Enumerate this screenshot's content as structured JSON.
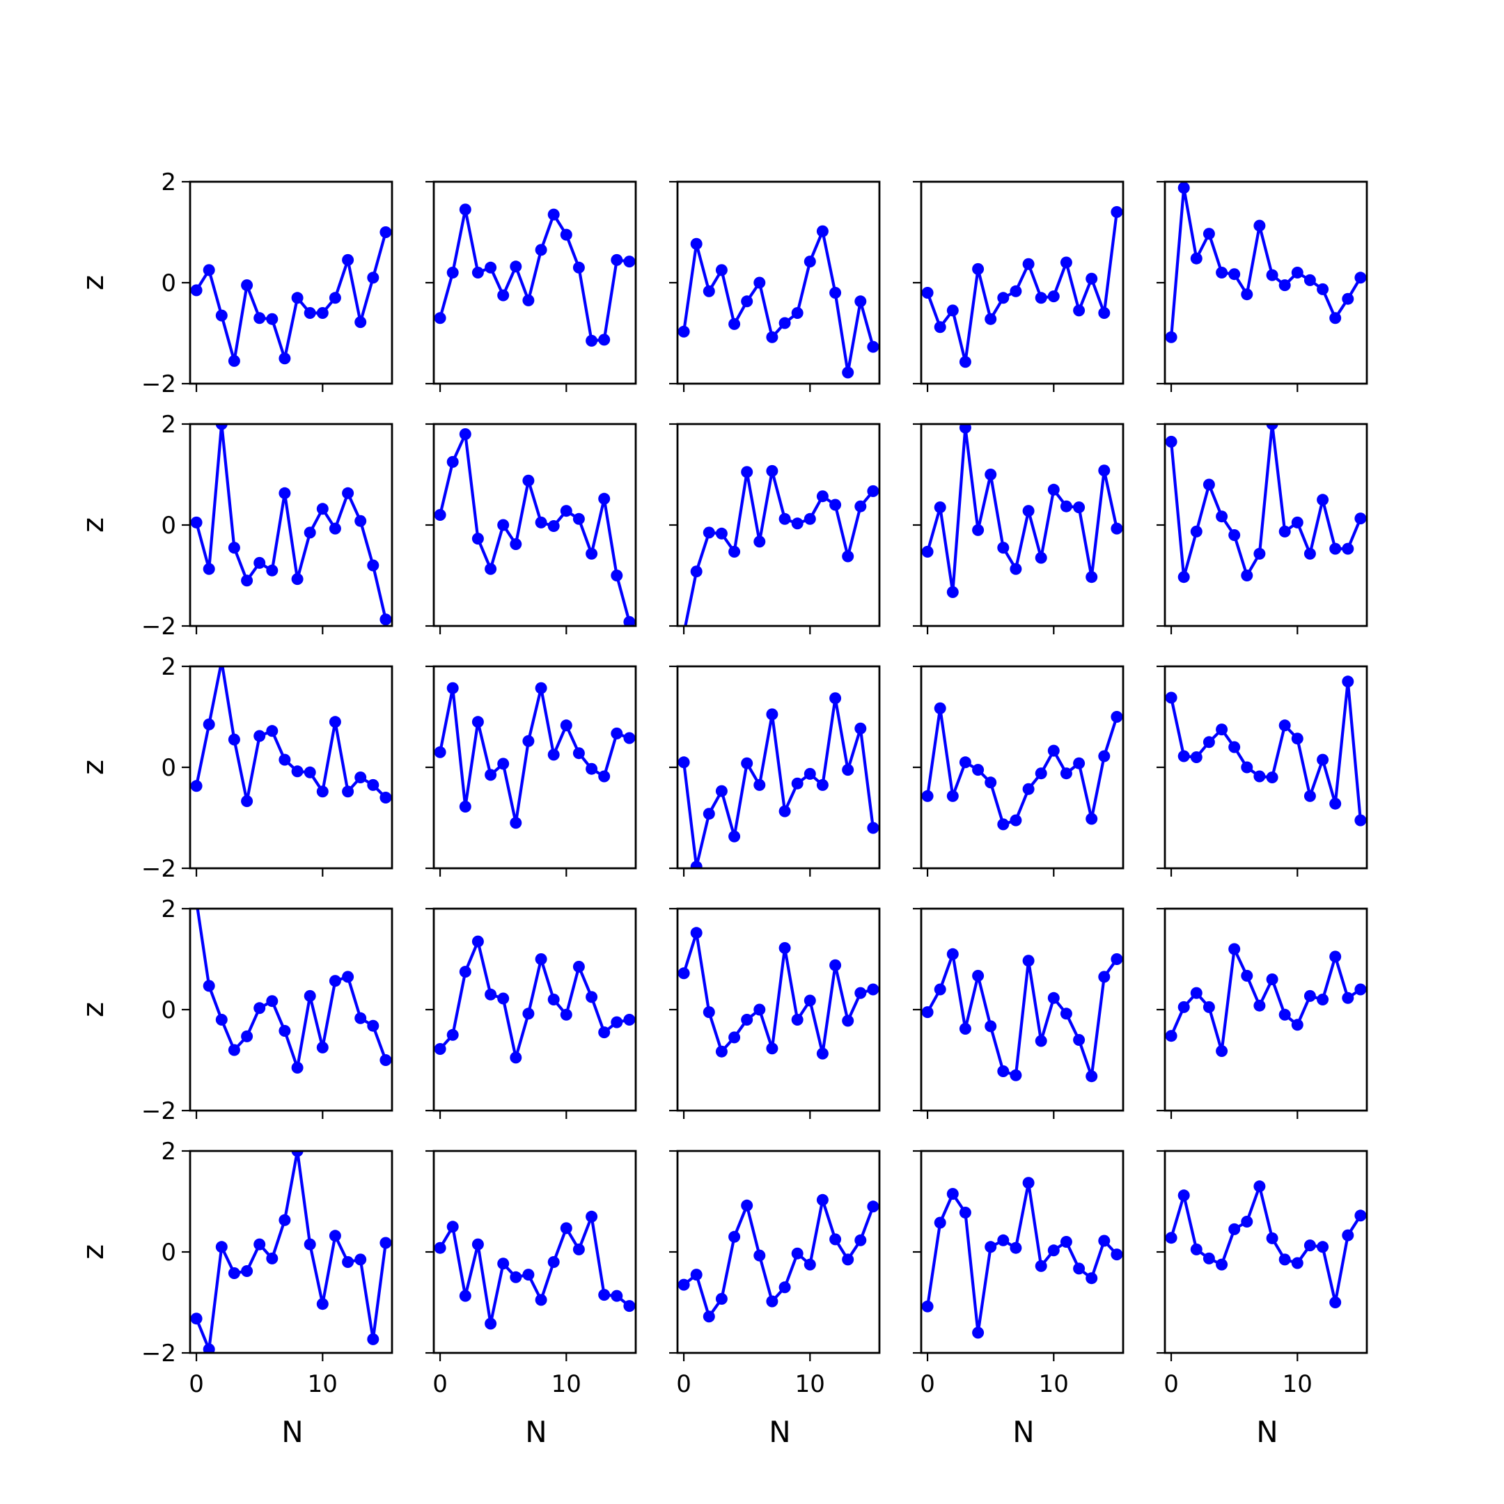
{
  "chart_data": {
    "type": "line",
    "layout": "5x5 grid of subplots, shared x and y axes",
    "xlabel": "N",
    "ylabel": "z",
    "x_ticks": [
      0,
      10
    ],
    "y_ticks": [
      -2,
      0,
      2
    ],
    "x_tick_labels": [
      "0",
      "10"
    ],
    "y_tick_labels": [
      "−2",
      "0",
      "2"
    ],
    "xlim": [
      -0.5,
      15.5
    ],
    "ylim": [
      -2,
      2
    ],
    "grid": false,
    "line_color": "#0000ff",
    "marker": "circle",
    "x": [
      0,
      1,
      2,
      3,
      4,
      5,
      6,
      7,
      8,
      9,
      10,
      11,
      12,
      13,
      14,
      15
    ],
    "panels": [
      [
        [
          -0.15,
          0.25,
          -0.65,
          -1.55,
          -0.05,
          -0.7,
          -0.72,
          -1.5,
          -0.3,
          -0.6,
          -0.6,
          -0.3,
          0.45,
          -0.78,
          0.1,
          1.0
        ],
        [
          -0.7,
          0.2,
          1.45,
          0.2,
          0.3,
          -0.25,
          0.32,
          -0.35,
          0.65,
          1.35,
          0.95,
          0.3,
          -1.15,
          -1.13,
          0.45,
          0.42
        ],
        [
          -0.97,
          0.77,
          -0.17,
          0.25,
          -0.82,
          -0.37,
          0.0,
          -1.08,
          -0.8,
          -0.6,
          0.42,
          1.02,
          -0.2,
          -1.78,
          -0.37,
          -1.27
        ],
        [
          -0.2,
          -0.88,
          -0.55,
          -1.57,
          0.27,
          -0.72,
          -0.3,
          -0.17,
          0.37,
          -0.3,
          -0.27,
          0.4,
          -0.55,
          0.08,
          -0.6,
          1.4
        ],
        [
          -1.08,
          1.88,
          0.48,
          0.97,
          0.2,
          0.17,
          -0.23,
          1.13,
          0.15,
          -0.05,
          0.2,
          0.05,
          -0.13,
          -0.7,
          -0.32,
          0.1
        ]
      ],
      [
        [
          0.05,
          -0.87,
          2.0,
          -0.45,
          -1.1,
          -0.75,
          -0.9,
          0.63,
          -1.07,
          -0.15,
          0.32,
          -0.07,
          0.63,
          0.08,
          -0.8,
          -1.87
        ],
        [
          0.2,
          1.25,
          1.8,
          -0.27,
          -0.87,
          0.0,
          -0.38,
          0.88,
          0.05,
          -0.02,
          0.28,
          0.12,
          -0.57,
          0.52,
          -1.0,
          -1.92
        ],
        [
          -2.15,
          -0.92,
          -0.15,
          -0.17,
          -0.53,
          1.05,
          -0.33,
          1.07,
          0.12,
          0.03,
          0.12,
          0.57,
          0.4,
          -0.62,
          0.37,
          0.67
        ],
        [
          -0.53,
          0.35,
          -1.33,
          1.93,
          -0.1,
          1.0,
          -0.45,
          -0.87,
          0.28,
          -0.65,
          0.7,
          0.37,
          0.35,
          -1.03,
          1.08,
          -0.07
        ],
        [
          1.65,
          -1.03,
          -0.13,
          0.8,
          0.17,
          -0.2,
          -1.0,
          -0.57,
          2.0,
          -0.13,
          0.05,
          -0.57,
          0.5,
          -0.47,
          -0.47,
          0.13
        ]
      ],
      [
        [
          -0.37,
          0.85,
          2.1,
          0.55,
          -0.67,
          0.62,
          0.72,
          0.15,
          -0.08,
          -0.1,
          -0.48,
          0.9,
          -0.48,
          -0.2,
          -0.35,
          -0.6
        ],
        [
          0.3,
          1.57,
          -0.78,
          0.9,
          -0.15,
          0.07,
          -1.1,
          0.52,
          1.57,
          0.25,
          0.83,
          0.28,
          -0.03,
          -0.18,
          0.67,
          0.58
        ],
        [
          0.1,
          -1.97,
          -0.92,
          -0.47,
          -1.37,
          0.08,
          -0.35,
          1.05,
          -0.87,
          -0.32,
          -0.13,
          -0.35,
          1.37,
          -0.05,
          0.77,
          -1.2
        ],
        [
          -0.57,
          1.17,
          -0.57,
          0.1,
          -0.05,
          -0.3,
          -1.13,
          -1.05,
          -0.43,
          -0.12,
          0.33,
          -0.12,
          0.08,
          -1.02,
          0.22,
          1.0
        ],
        [
          1.38,
          0.22,
          0.2,
          0.5,
          0.75,
          0.4,
          0.0,
          -0.18,
          -0.2,
          0.83,
          0.57,
          -0.57,
          0.15,
          -0.72,
          1.7,
          -1.05
        ]
      ],
      [
        [
          2.15,
          0.47,
          -0.2,
          -0.8,
          -0.53,
          0.03,
          0.17,
          -0.42,
          -1.15,
          0.27,
          -0.75,
          0.57,
          0.65,
          -0.17,
          -0.32,
          -1.0
        ],
        [
          -0.78,
          -0.5,
          0.75,
          1.35,
          0.3,
          0.22,
          -0.95,
          -0.08,
          1.0,
          0.2,
          -0.1,
          0.85,
          0.25,
          -0.45,
          -0.25,
          -0.2
        ],
        [
          0.72,
          1.52,
          -0.05,
          -0.83,
          -0.55,
          -0.2,
          0.0,
          -0.77,
          1.22,
          -0.2,
          0.18,
          -0.87,
          0.88,
          -0.22,
          0.33,
          0.4
        ],
        [
          -0.05,
          0.4,
          1.1,
          -0.38,
          0.67,
          -0.33,
          -1.22,
          -1.3,
          0.97,
          -0.62,
          0.23,
          -0.08,
          -0.6,
          -1.32,
          0.65,
          1.0
        ],
        [
          -0.52,
          0.05,
          0.33,
          0.05,
          -0.82,
          1.2,
          0.67,
          0.08,
          0.6,
          -0.1,
          -0.3,
          0.27,
          0.2,
          1.05,
          0.23,
          0.4
        ]
      ],
      [
        [
          -1.32,
          -1.93,
          0.1,
          -0.42,
          -0.38,
          0.15,
          -0.13,
          0.63,
          2.0,
          0.15,
          -1.03,
          0.32,
          -0.2,
          -0.15,
          -1.73,
          0.18
        ],
        [
          0.08,
          0.5,
          -0.87,
          0.15,
          -1.42,
          -0.23,
          -0.5,
          -0.45,
          -0.95,
          -0.2,
          0.47,
          0.05,
          0.7,
          -0.85,
          -0.87,
          -1.07
        ],
        [
          -0.65,
          -0.45,
          -1.28,
          -0.93,
          0.3,
          0.92,
          -0.07,
          -0.98,
          -0.7,
          -0.03,
          -0.25,
          1.03,
          0.25,
          -0.15,
          0.23,
          0.9
        ],
        [
          -1.08,
          0.58,
          1.15,
          0.78,
          -1.6,
          0.1,
          0.23,
          0.08,
          1.37,
          -0.28,
          0.03,
          0.2,
          -0.33,
          -0.52,
          0.22,
          -0.05
        ],
        [
          0.28,
          1.12,
          0.05,
          -0.13,
          -0.25,
          0.45,
          0.6,
          1.3,
          0.27,
          -0.15,
          -0.22,
          0.13,
          0.1,
          -1.0,
          0.33,
          0.72
        ]
      ]
    ]
  }
}
